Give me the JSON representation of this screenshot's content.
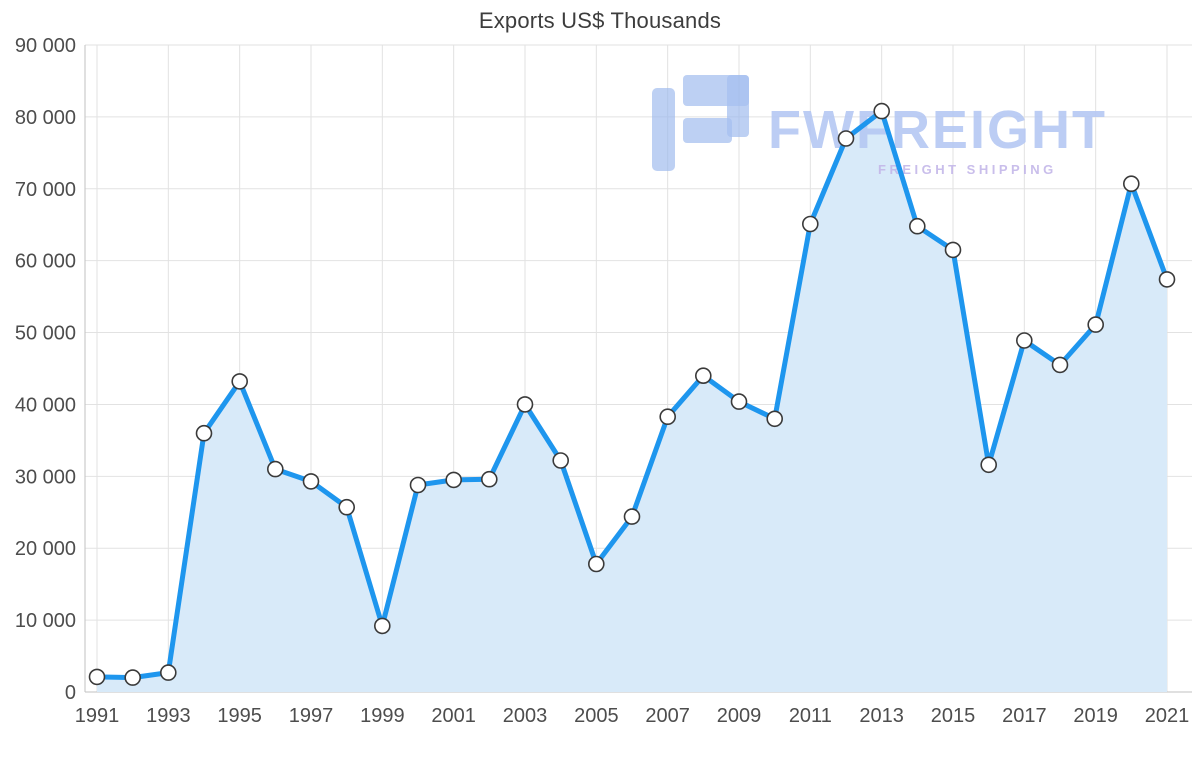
{
  "chart_data": {
    "type": "line",
    "title": "Exports US$ Thousands",
    "xlabel": "",
    "ylabel": "",
    "years": [
      1991,
      1992,
      1993,
      1994,
      1995,
      1996,
      1997,
      1998,
      1999,
      2000,
      2001,
      2002,
      2003,
      2004,
      2005,
      2006,
      2007,
      2008,
      2009,
      2010,
      2011,
      2012,
      2013,
      2014,
      2015,
      2016,
      2017,
      2018,
      2019,
      2020,
      2021
    ],
    "values": [
      2100,
      2000,
      2700,
      36000,
      43200,
      31000,
      29300,
      25700,
      9200,
      28800,
      29500,
      29600,
      40000,
      32200,
      17800,
      24400,
      38300,
      44000,
      40400,
      38000,
      65100,
      77000,
      80800,
      64800,
      61500,
      31600,
      48900,
      45500,
      51100,
      70700,
      57400
    ],
    "ylim": [
      0,
      90000
    ],
    "y_tick_values": [
      0,
      10000,
      20000,
      30000,
      40000,
      50000,
      60000,
      70000,
      80000,
      90000
    ],
    "y_tick_labels": [
      "0",
      "10 000",
      "20 000",
      "30 000",
      "40 000",
      "50 000",
      "60 000",
      "70 000",
      "80 000",
      "90 000"
    ],
    "x_tick_labels": [
      "1991",
      "1993",
      "1995",
      "1997",
      "1999",
      "2001",
      "2003",
      "2005",
      "2007",
      "2009",
      "2011",
      "2013",
      "2015",
      "2017",
      "2019",
      "2021"
    ],
    "grid": true,
    "legend": "none",
    "area_filled": true,
    "line_color": "#1e96ee",
    "area_color": "#d8eaf9",
    "marker_fill": "#ffffff",
    "marker_stroke": "#3a3a3a",
    "gridline_color": "#e2e2e2",
    "axis_color": "#c2c2c2"
  },
  "watermark": {
    "brand": "FWFREIGHT",
    "tagline": "FREIGHT SHIPPING",
    "brand_color": "#b5c8f3",
    "tagline_color": "#c4b7e9",
    "logo_color": "#9db9ee"
  }
}
